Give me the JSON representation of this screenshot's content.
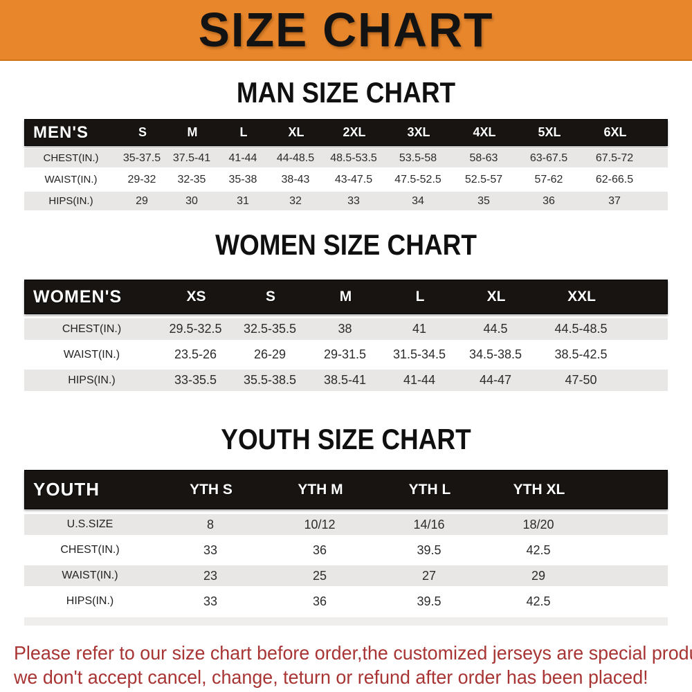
{
  "banner": {
    "title": "SIZE CHART"
  },
  "sections": [
    {
      "heading": "MAN SIZE CHART",
      "table": {
        "label": "MEN'S",
        "columns": [
          "S",
          "M",
          "L",
          "XL",
          "2XL",
          "3XL",
          "4XL",
          "5XL",
          "6XL"
        ],
        "rows": [
          {
            "label": "CHEST(IN.)",
            "values": [
              "35-37.5",
              "37.5-41",
              "41-44",
              "44-48.5",
              "48.5-53.5",
              "53.5-58",
              "58-63",
              "63-67.5",
              "67.5-72"
            ]
          },
          {
            "label": "WAIST(IN.)",
            "values": [
              "29-32",
              "32-35",
              "35-38",
              "38-43",
              "43-47.5",
              "47.5-52.5",
              "52.5-57",
              "57-62",
              "62-66.5"
            ]
          },
          {
            "label": "HIPS(IN.)",
            "values": [
              "29",
              "30",
              "31",
              "32",
              "33",
              "34",
              "35",
              "36",
              "37"
            ]
          }
        ]
      }
    },
    {
      "heading": "WOMEN SIZE CHART",
      "table": {
        "label": "WOMEN'S",
        "columns": [
          "XS",
          "S",
          "M",
          "L",
          "XL",
          "XXL"
        ],
        "rows": [
          {
            "label": "CHEST(IN.)",
            "values": [
              "29.5-32.5",
              "32.5-35.5",
              "38",
              "41",
              "44.5",
              "44.5-48.5"
            ]
          },
          {
            "label": "WAIST(IN.)",
            "values": [
              "23.5-26",
              "26-29",
              "29-31.5",
              "31.5-34.5",
              "34.5-38.5",
              "38.5-42.5"
            ]
          },
          {
            "label": "HIPS(IN.)",
            "values": [
              "33-35.5",
              "35.5-38.5",
              "38.5-41",
              "41-44",
              "44-47",
              "47-50"
            ]
          }
        ]
      }
    },
    {
      "heading": "YOUTH SIZE CHART",
      "table": {
        "label": "YOUTH",
        "columns": [
          "YTH S",
          "YTH M",
          "YTH L",
          "YTH XL"
        ],
        "rows": [
          {
            "label": "U.S.SIZE",
            "values": [
              "8",
              "10/12",
              "14/16",
              "18/20"
            ]
          },
          {
            "label": "CHEST(IN.)",
            "values": [
              "33",
              "36",
              "39.5",
              "42.5"
            ]
          },
          {
            "label": "WAIST(IN.)",
            "values": [
              "23",
              "25",
              "27",
              "29"
            ]
          },
          {
            "label": "HIPS(IN.)",
            "values": [
              "33",
              "36",
              "39.5",
              "42.5"
            ]
          }
        ]
      }
    }
  ],
  "footer": {
    "line1": "Please refer to our size chart before order,the customized jerseys are special products,",
    "line2": "we don't accept cancel, change, teturn or refund after order has been placed!"
  },
  "colors": {
    "banner_bg": "#E8862C",
    "banner_text": "#131313",
    "table_header_bg": "#171412",
    "table_header_text": "#FFFFFF",
    "row_alt_bg": "#E8E7E5",
    "row_bg": "#FFFFFF",
    "note_text": "#A83434"
  }
}
